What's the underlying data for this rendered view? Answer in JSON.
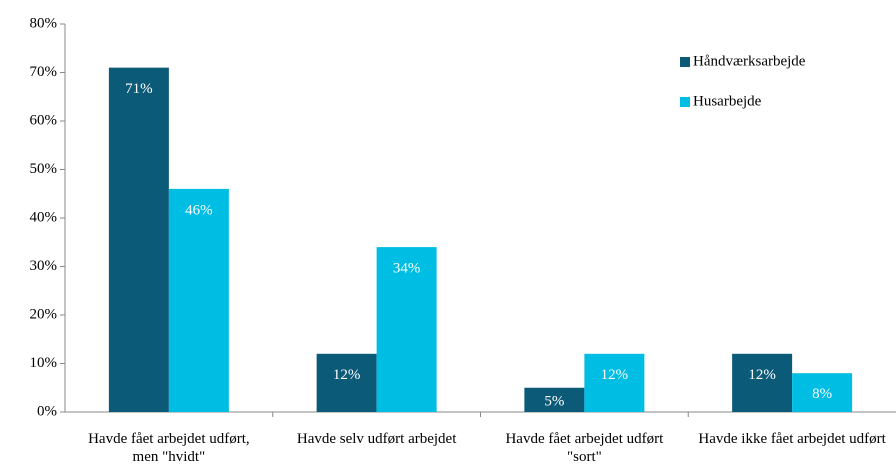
{
  "chart_data": {
    "type": "bar",
    "categories": [
      "Havde fået arbejdet udført, men \"hvidt\"",
      "Havde selv udført arbejdet",
      "Havde fået arbejdet udført \"sort\"",
      "Havde ikke fået arbejdet udført"
    ],
    "series": [
      {
        "name": "Håndværksarbejde",
        "color": "#0b5a78",
        "values": [
          71,
          12,
          5,
          12
        ],
        "value_labels": [
          "71%",
          "12%",
          "5%",
          "12%"
        ]
      },
      {
        "name": "Husarbejde",
        "color": "#00bde3",
        "values": [
          46,
          34,
          12,
          8
        ],
        "value_labels": [
          "46%",
          "34%",
          "12%",
          "8%"
        ]
      }
    ],
    "ylim": [
      0,
      80
    ],
    "yticks": [
      {
        "value": 0,
        "label": "0%"
      },
      {
        "value": 10,
        "label": "10%"
      },
      {
        "value": 20,
        "label": "20%"
      },
      {
        "value": 30,
        "label": "30%"
      },
      {
        "value": 40,
        "label": "40%"
      },
      {
        "value": 50,
        "label": "50%"
      },
      {
        "value": 60,
        "label": "60%"
      },
      {
        "value": 70,
        "label": "70%"
      },
      {
        "value": 80,
        "label": "80%"
      }
    ],
    "grid": false,
    "legend": "upper right"
  }
}
